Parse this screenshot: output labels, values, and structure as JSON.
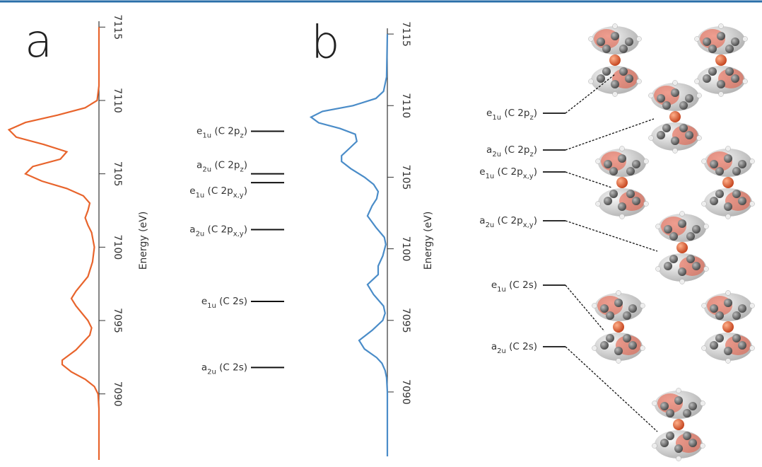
{
  "chart_data": [
    {
      "type": "line",
      "title": "a",
      "ylabel": "Energy (eV)",
      "ylim": [
        7085.5,
        7115.4
      ],
      "yticks": [
        7090,
        7095,
        7100,
        7105,
        7110,
        7115
      ],
      "xlim": [
        0,
        1
      ],
      "series": [
        {
          "color": "#e8642c",
          "y": [
            7115,
            7111,
            7110,
            7109.5,
            7109,
            7108.5,
            7108,
            7107.5,
            7107,
            7106.5,
            7106,
            7105.5,
            7105,
            7104.5,
            7104,
            7103.5,
            7103,
            7102.5,
            7102,
            7101.5,
            7101,
            7100,
            7099,
            7098,
            7097,
            7096.5,
            7096,
            7095,
            7094.5,
            7094,
            7093,
            7092.3,
            7092,
            7091.5,
            7091,
            7090.5,
            7090,
            7089,
            7085.5
          ],
          "values": [
            0,
            0,
            0.02,
            0.15,
            0.45,
            0.8,
            0.98,
            0.9,
            0.6,
            0.35,
            0.42,
            0.72,
            0.8,
            0.62,
            0.35,
            0.17,
            0.1,
            0.12,
            0.15,
            0.12,
            0.08,
            0.05,
            0.07,
            0.12,
            0.25,
            0.3,
            0.25,
            0.12,
            0.08,
            0.1,
            0.25,
            0.4,
            0.4,
            0.3,
            0.15,
            0.05,
            0.01,
            0,
            0
          ]
        }
      ],
      "levels": [
        {
          "energy": 7107.9,
          "label": [
            "e",
            "1u",
            " (C 2p",
            "z",
            ")"
          ]
        },
        {
          "energy": 7105.0,
          "label": [
            "a",
            "2u",
            " (C 2p",
            "z",
            ")"
          ]
        },
        {
          "energy": 7104.4,
          "label": [
            "e",
            "1u",
            " (C 2p",
            "x,y",
            ")"
          ]
        },
        {
          "energy": 7101.2,
          "label": [
            "a",
            "2u",
            " (C 2p",
            "x,y",
            ")"
          ]
        },
        {
          "energy": 7096.3,
          "label": [
            "e",
            "1u",
            " (C 2s)"
          ]
        },
        {
          "energy": 7091.8,
          "label": [
            "a",
            "2u",
            " (C 2s)"
          ]
        }
      ]
    },
    {
      "type": "line",
      "title": "b",
      "ylabel": "Energy (eV)",
      "ylim": [
        7085.5,
        7115.4
      ],
      "yticks": [
        7090,
        7095,
        7100,
        7105,
        7110,
        7115
      ],
      "xlim": [
        0,
        1
      ],
      "series": [
        {
          "color": "#4a8cc8",
          "y": [
            7115,
            7112,
            7111,
            7110.5,
            7110,
            7109.6,
            7109.2,
            7108.8,
            7108.4,
            7108,
            7107.5,
            7107,
            7106.5,
            7106.1,
            7105.6,
            7105,
            7104.5,
            7104,
            7103.5,
            7103,
            7102.3,
            7101.5,
            7100.8,
            7100.3,
            7099.5,
            7098.8,
            7098.2,
            7097.5,
            7096.8,
            7096,
            7095.5,
            7095,
            7094.3,
            7093.6,
            7093,
            7092.4,
            7092,
            7091.5,
            7091,
            7090,
            7085.5
          ],
          "values": [
            0,
            0.01,
            0.05,
            0.15,
            0.45,
            0.85,
            1.0,
            0.9,
            0.62,
            0.42,
            0.4,
            0.5,
            0.6,
            0.6,
            0.48,
            0.3,
            0.18,
            0.12,
            0.14,
            0.2,
            0.26,
            0.15,
            0.04,
            0.02,
            0.06,
            0.12,
            0.12,
            0.26,
            0.18,
            0.05,
            0.03,
            0.06,
            0.2,
            0.37,
            0.3,
            0.14,
            0.07,
            0.03,
            0.01,
            0,
            0
          ]
        }
      ]
    }
  ]
}
